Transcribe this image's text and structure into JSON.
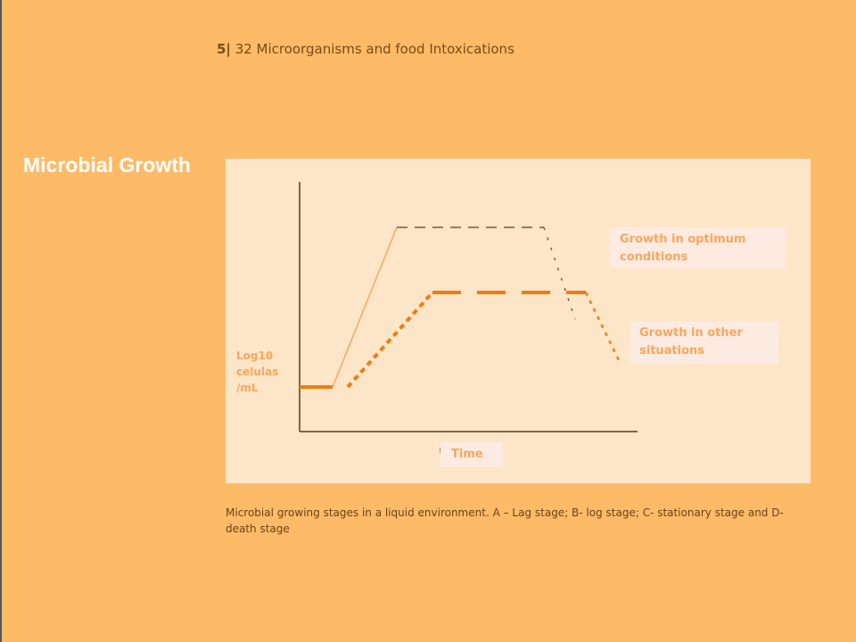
{
  "header": {
    "slide_number": "5|",
    "title": "32 Microorganisms and food Intoxications"
  },
  "slide_title": "Microbial Growth",
  "diagram": {
    "legend_optimum": "Growth in optimum conditions",
    "legend_other": "Growth in other situations",
    "y_label": "Log10 celulas /mL",
    "x_label": "Time",
    "colors": {
      "optimum": "#f5a85d",
      "other": "#f07d10",
      "axes": "#5a3a1a"
    }
  },
  "caption": "Microbial growing stages in a liquid environment. A – Lag stage; B- log stage; C- stationary stage and D- death stage"
}
